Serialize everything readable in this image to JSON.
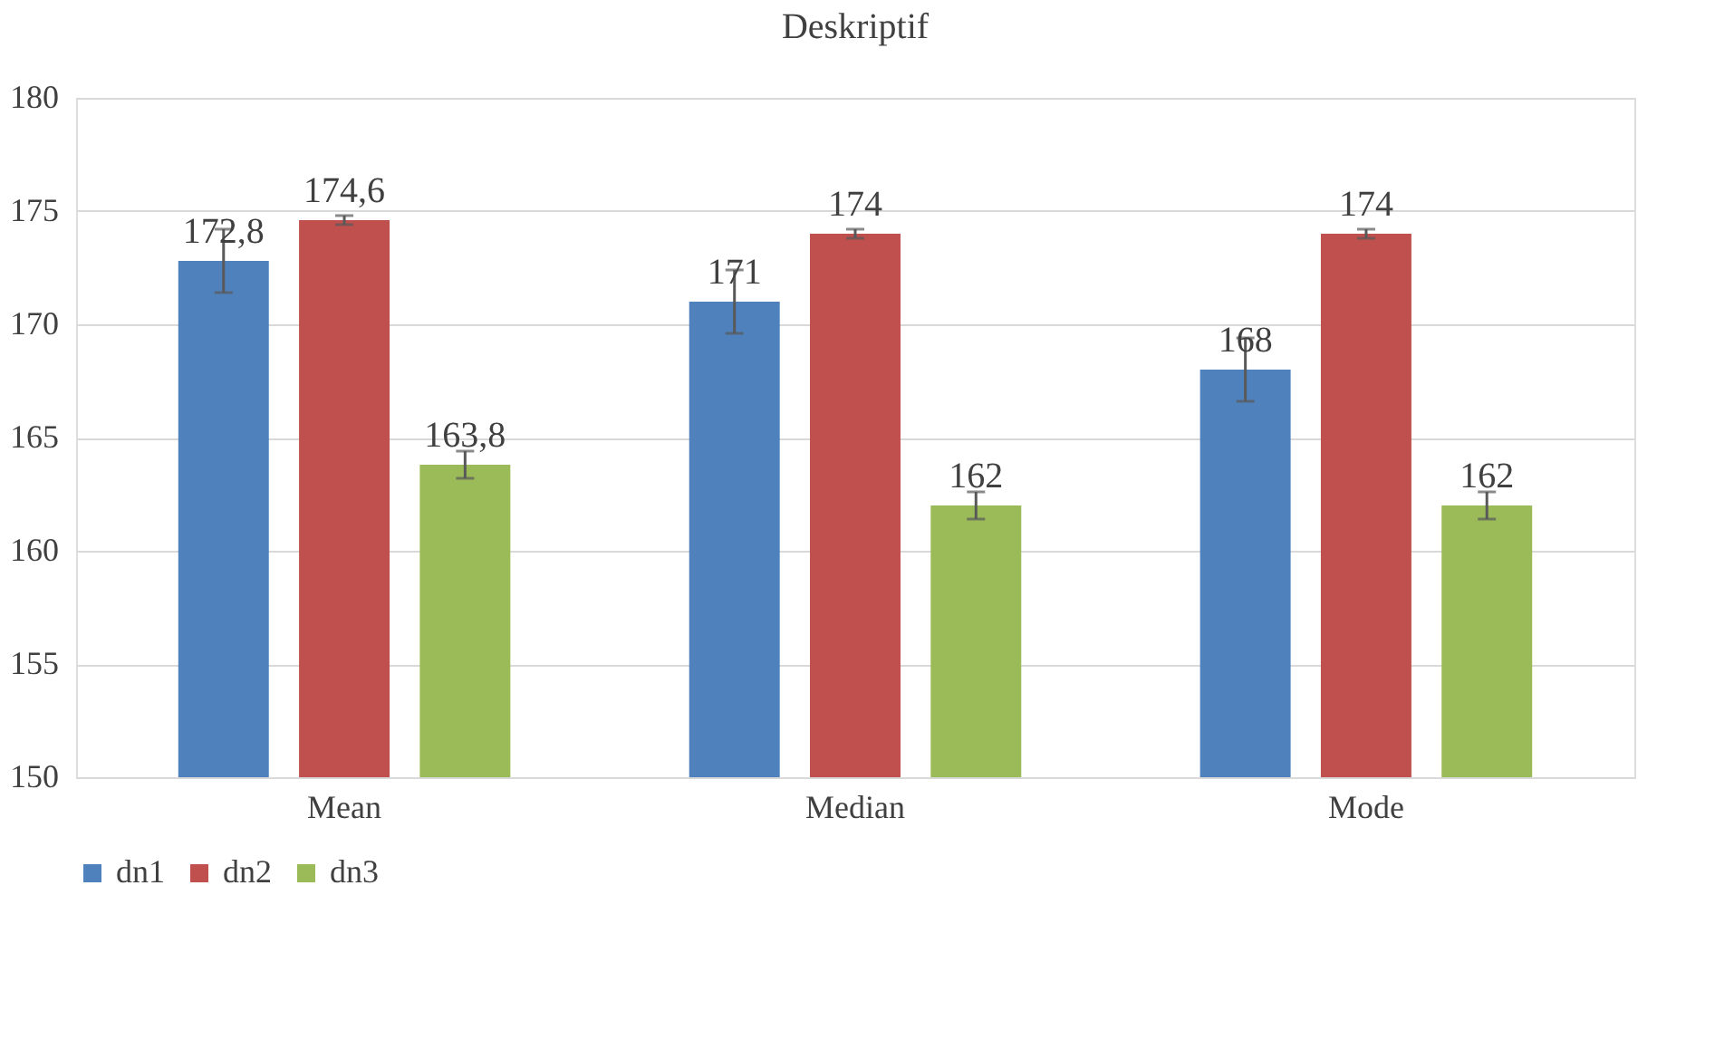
{
  "chart_data": {
    "type": "bar",
    "title": "Deskriptif",
    "categories": [
      "Mean",
      "Median",
      "Mode"
    ],
    "series": [
      {
        "name": "dn1",
        "color": "#4f81bd",
        "values": [
          172.8,
          171,
          168
        ],
        "errors": [
          1.4,
          1.4,
          1.4
        ],
        "value_labels": [
          "172,8",
          "171",
          "168"
        ]
      },
      {
        "name": "dn2",
        "color": "#c0504d",
        "values": [
          174.6,
          174,
          174
        ],
        "errors": [
          0.2,
          0.2,
          0.2
        ],
        "value_labels": [
          "174,6",
          "174",
          "174"
        ]
      },
      {
        "name": "dn3",
        "color": "#9bbb59",
        "values": [
          163.8,
          162,
          162
        ],
        "errors": [
          0.6,
          0.6,
          0.6
        ],
        "value_labels": [
          "163,8",
          "162",
          "162"
        ]
      }
    ],
    "ylim": [
      150,
      180
    ],
    "yticks": [
      150,
      155,
      160,
      165,
      170,
      175,
      180
    ],
    "grid": "y",
    "legend": "bottom"
  }
}
